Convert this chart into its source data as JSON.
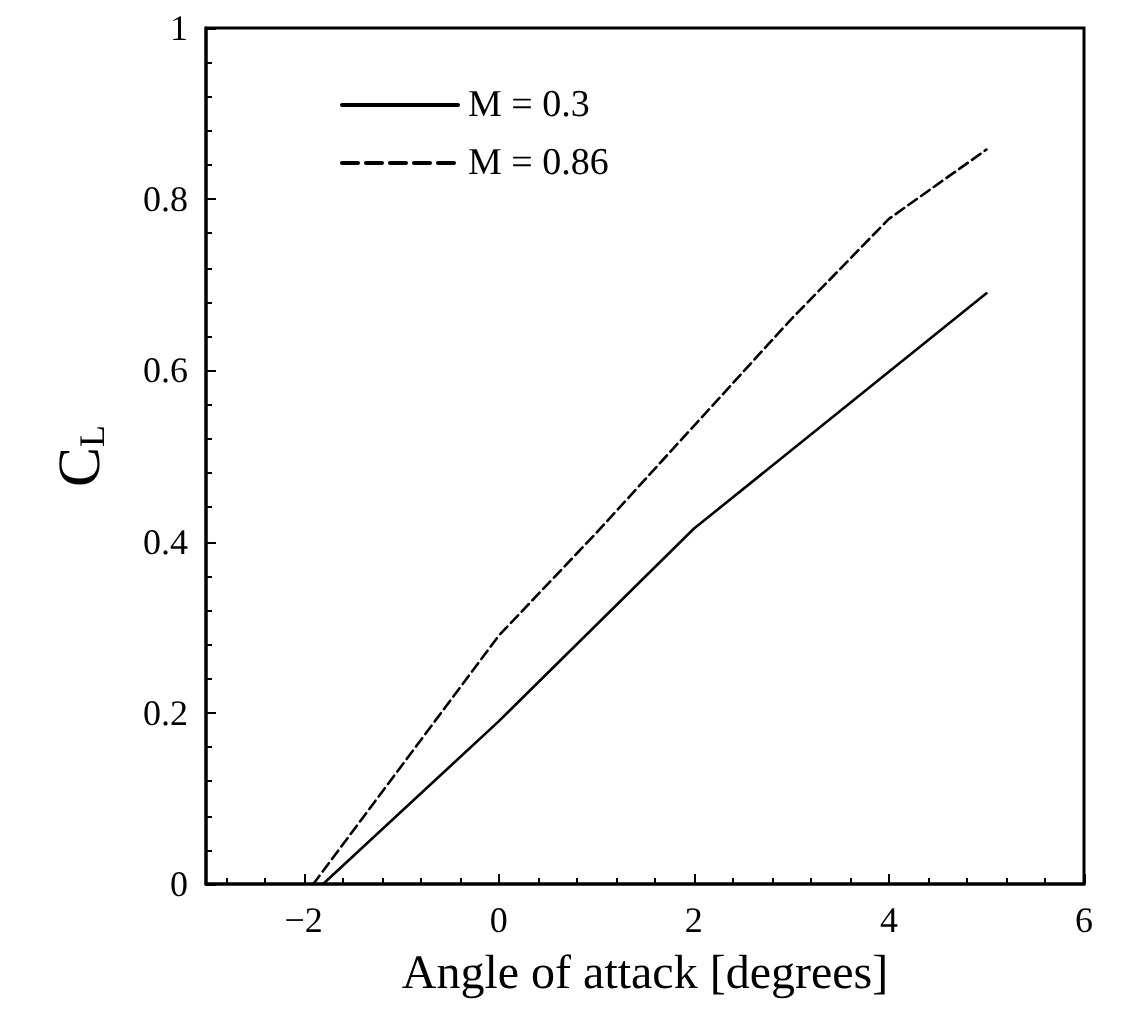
{
  "chart_data": {
    "type": "line",
    "xlabel": "Angle of attack [degrees]",
    "ylabel": "C$_{L}$",
    "xlim": [
      -3,
      6
    ],
    "xticks": [
      {
        "value": -2,
        "label": "−2"
      },
      0,
      2,
      4,
      6
    ],
    "ylim": [
      0,
      1
    ],
    "yticks": [
      0,
      0.2,
      0.4,
      0.6,
      0.8,
      1
    ],
    "legend": "top left",
    "grid": false,
    "marker": "none",
    "series": [
      {
        "name": "M = 0.3",
        "color": "#000000",
        "line_style": "solid",
        "x": [
          -1.8,
          0,
          2,
          5
        ],
        "values": [
          0,
          0.19,
          0.415,
          0.69
        ]
      },
      {
        "name": "M = 0.86",
        "color": "#000000",
        "line_style": "dashed",
        "x": [
          -1.9,
          0,
          1,
          2,
          3,
          4,
          5
        ],
        "values": [
          0,
          0.29,
          0.41,
          0.535,
          0.66,
          0.777,
          0.858
        ]
      }
    ]
  }
}
